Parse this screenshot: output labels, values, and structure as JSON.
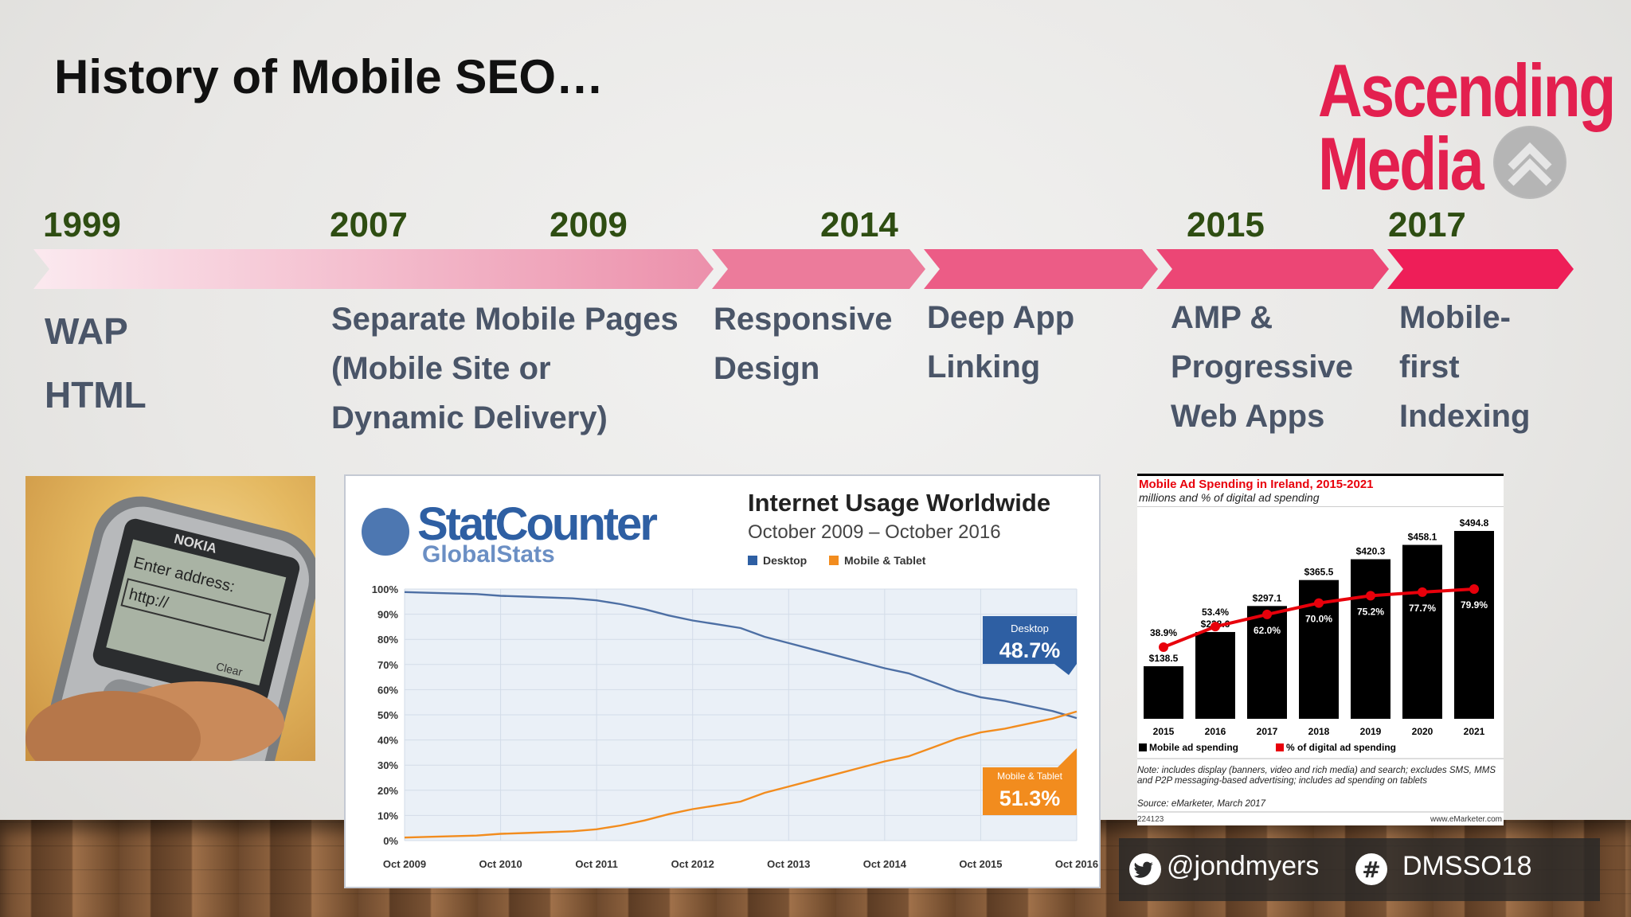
{
  "slide": {
    "title": "History of Mobile SEO…",
    "logo": {
      "line1": "Ascending",
      "line2": "Media"
    },
    "timeline": [
      {
        "year": "1999",
        "label_lines": [
          "WAP",
          "HTML"
        ]
      },
      {
        "year": "2007",
        "label_lines": [
          "Separate Mobile Pages",
          "(Mobile Site or",
          "Dynamic Delivery)"
        ]
      },
      {
        "year": "2009",
        "label_lines": []
      },
      {
        "year": "2014",
        "label_lines": [
          "Responsive",
          "Design"
        ]
      },
      {
        "year": "",
        "label_lines": [
          "Deep App",
          "Linking"
        ]
      },
      {
        "year": "2015",
        "label_lines": [
          "AMP &",
          "Progressive",
          "Web Apps"
        ]
      },
      {
        "year": "2017",
        "label_lines": [
          "Mobile-",
          "first",
          "Indexing"
        ]
      }
    ],
    "phone": {
      "brand": "NOKIA",
      "screen_line1": "Enter address:",
      "screen_line2": "http://",
      "softkey": "Clear"
    },
    "social": {
      "twitter": "@jondmyers",
      "hashtag": "DMSSO18"
    }
  },
  "chart_data": [
    {
      "type": "line",
      "brand_line1": "StatCounter",
      "brand_line2": "GlobalStats",
      "title": "Internet Usage Worldwide",
      "subtitle": "October 2009 – October 2016",
      "legend_placement": "top",
      "yticks": [
        "100%",
        "90%",
        "80%",
        "70%",
        "60%",
        "50%",
        "40%",
        "30%",
        "20%",
        "10%",
        "0%"
      ],
      "ylim": [
        0,
        100
      ],
      "xticks": [
        "Oct 2009",
        "Oct 2010",
        "Oct 2011",
        "Oct 2012",
        "Oct 2013",
        "Oct 2014",
        "Oct 2015",
        "Oct 2016"
      ],
      "x": [
        2009.75,
        2010.0,
        2010.5,
        2010.75,
        2011.0,
        2011.5,
        2011.75,
        2012.0,
        2012.25,
        2012.5,
        2012.75,
        2013.0,
        2013.25,
        2013.5,
        2013.75,
        2014.0,
        2014.25,
        2014.5,
        2014.75,
        2015.0,
        2015.25,
        2015.5,
        2015.75,
        2016.0,
        2016.25,
        2016.5,
        2016.75
      ],
      "series": [
        {
          "name": "Desktop",
          "color": "#4d6fa4",
          "values": [
            98.8,
            98.5,
            98.0,
            97.3,
            97.0,
            96.3,
            95.5,
            94.0,
            92.0,
            89.5,
            87.5,
            86.0,
            84.5,
            81.0,
            78.5,
            76.0,
            73.5,
            71.0,
            68.5,
            66.5,
            63.0,
            59.5,
            57.0,
            55.5,
            53.5,
            51.5,
            48.7
          ]
        },
        {
          "name": "Mobile & Tablet",
          "color": "#f28c1e",
          "values": [
            1.2,
            1.5,
            2.0,
            2.7,
            3.0,
            3.7,
            4.5,
            6.0,
            8.0,
            10.5,
            12.5,
            14.0,
            15.5,
            19.0,
            21.5,
            24.0,
            26.5,
            29.0,
            31.5,
            33.5,
            37.0,
            40.5,
            43.0,
            44.5,
            46.5,
            48.5,
            51.3
          ]
        }
      ],
      "callouts": [
        {
          "series": "Desktop",
          "label": "Desktop",
          "value": "48.7%",
          "color": "#2e5fa3"
        },
        {
          "series": "Mobile & Tablet",
          "label": "Mobile & Tablet",
          "value": "51.3%",
          "color": "#f28c1e"
        }
      ]
    },
    {
      "type": "bar",
      "title": "Mobile Ad Spending in Ireland, 2015-2021",
      "subtitle": "millions and % of digital ad spending",
      "categories": [
        "2015",
        "2016",
        "2017",
        "2018",
        "2019",
        "2020",
        "2021"
      ],
      "series": [
        {
          "name": "Mobile ad spending",
          "color": "#000000",
          "values": [
            138.5,
            228.6,
            297.1,
            365.5,
            420.3,
            458.1,
            494.8
          ],
          "labels": [
            "$138.5",
            "$228.6",
            "$297.1",
            "$365.5",
            "$420.3",
            "$458.1",
            "$494.8"
          ]
        },
        {
          "name": "% of digital ad spending",
          "color": "#e8000b",
          "values": [
            38.9,
            53.4,
            62.0,
            70.0,
            75.2,
            77.7,
            79.9
          ],
          "labels": [
            "38.9%",
            "53.4%",
            "62.0%",
            "70.0%",
            "75.2%",
            "77.7%",
            "79.9%"
          ]
        }
      ],
      "legend_placement": "bottom",
      "note": "Note: includes display (banners, video and rich media) and search; excludes SMS, MMS and P2P messaging-based advertising; includes ad spending on tablets",
      "source": "Source: eMarketer, March 2017",
      "code": "224123",
      "site": "www.eMarketer.com"
    }
  ]
}
